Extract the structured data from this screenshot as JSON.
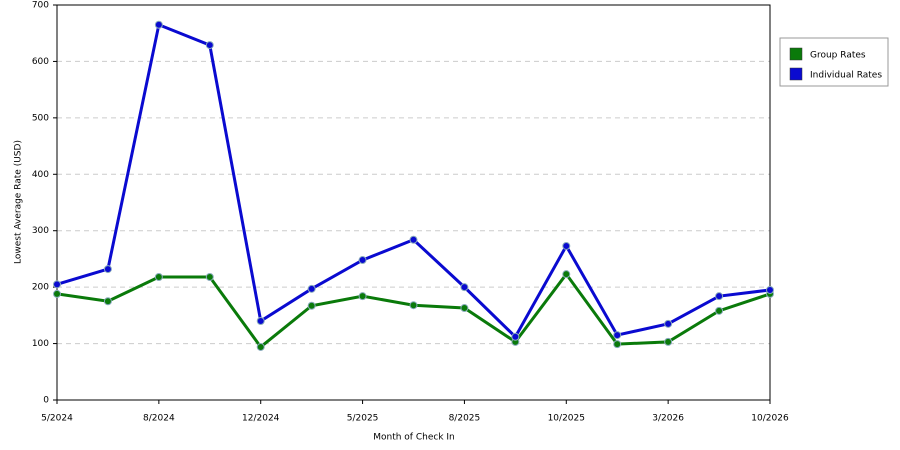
{
  "chart_data": {
    "type": "line",
    "x_label": "Month of Check In",
    "y_label": "Lowest Average Rate (USD)",
    "categories": [
      "5/2024",
      null,
      "8/2024",
      null,
      "12/2024",
      null,
      "5/2025",
      null,
      "8/2025",
      null,
      "10/2025",
      null,
      "3/2026",
      null,
      "10/2026"
    ],
    "series": [
      {
        "name": "Group Rates",
        "color": "#0a7a0a",
        "values": [
          188,
          175,
          218,
          218,
          94,
          167,
          184,
          168,
          163,
          103,
          223,
          99,
          103,
          158,
          188
        ]
      },
      {
        "name": "Individual Rates",
        "color": "#0a0ad0",
        "values": [
          205,
          232,
          665,
          629,
          140,
          197,
          248,
          284,
          200,
          112,
          273,
          115,
          135,
          184,
          195
        ]
      }
    ],
    "ylim": [
      0,
      700
    ],
    "yticks": [
      0,
      100,
      200,
      300,
      400,
      500,
      600,
      700
    ],
    "grid": true,
    "legend": "right"
  }
}
